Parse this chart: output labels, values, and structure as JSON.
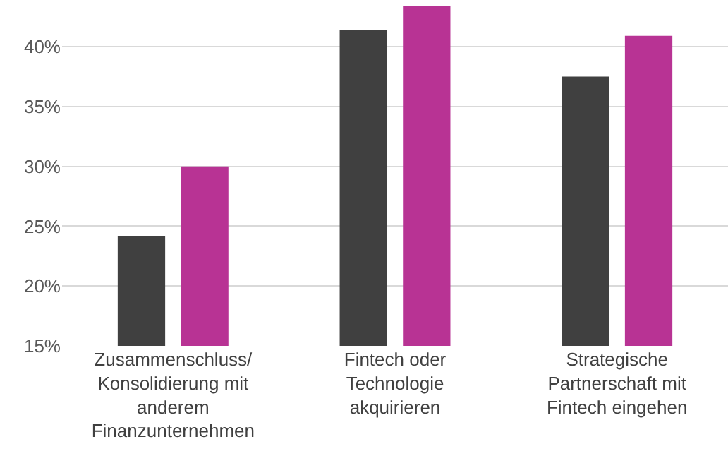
{
  "chart_data": {
    "type": "bar",
    "categories": [
      "Zusammenschluss/\nKonsolidierung mit\nanderem\nFinanzunternehmen",
      "Fintech oder\nTechnologie\nakquirieren",
      "Strategische\nPartnerschaft mit\nFintech eingehen"
    ],
    "series": [
      {
        "color": "#404040",
        "values": [
          24.2,
          41.4,
          37.5
        ]
      },
      {
        "color": "#b83394",
        "values": [
          30.0,
          43.4,
          40.9
        ]
      }
    ],
    "ylim": [
      15,
      43.9
    ],
    "yticks": [
      {
        "value": 15,
        "label": "15%"
      },
      {
        "value": 20,
        "label": "20%"
      },
      {
        "value": 25,
        "label": "25%"
      },
      {
        "value": 30,
        "label": "30%"
      },
      {
        "value": 35,
        "label": "35%"
      },
      {
        "value": 40,
        "label": "40%"
      }
    ],
    "grid": "y"
  }
}
